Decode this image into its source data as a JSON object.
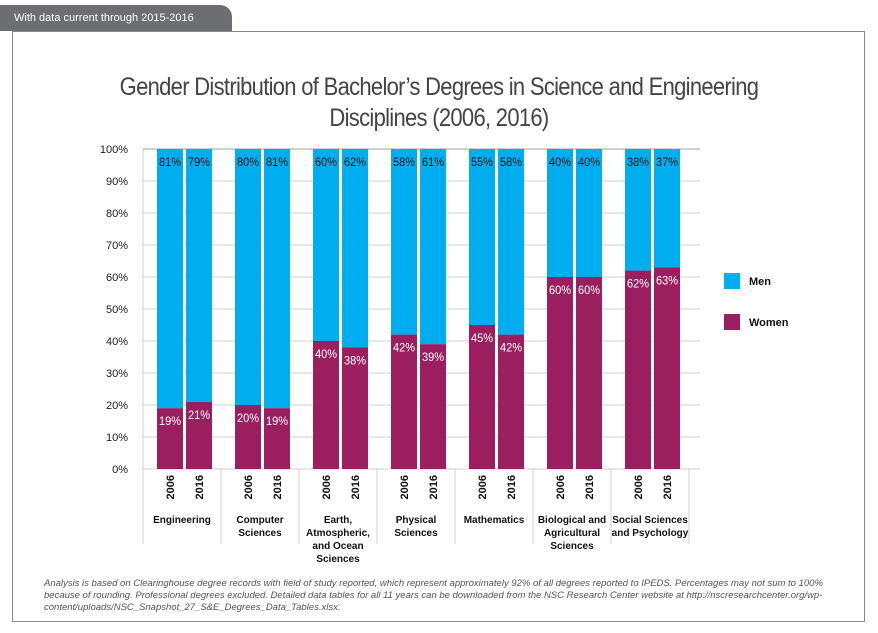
{
  "banner": "With data current through 2015-2016",
  "footnote": "Analysis is based on Clearinghouse degree records with field of study reported, which represent approximately 92% of all degrees reported to IPEDS. Percentages may not sum to 100% because of rounding. Professional degrees excluded. Detailed data tables for all 11 years can be downloaded from the NSC Research Center website at http://nscresearchcenter.org/wp-content/uploads/NSC_Snapshot_27_S&E_Degrees_Data_Tables.xlsx.",
  "chart_data": {
    "type": "bar",
    "stacked": true,
    "title": "Gender Distribution of Bachelor’s Degrees in Science and Engineering Disciplines (2006, 2016)",
    "ylim": [
      0,
      100
    ],
    "yticks": [
      "0%",
      "10%",
      "20%",
      "30%",
      "40%",
      "50%",
      "60%",
      "70%",
      "80%",
      "90%",
      "100%"
    ],
    "legend_position": "right",
    "groups": [
      {
        "label": [
          "Engineering"
        ],
        "years": [
          "2006",
          "2016"
        ],
        "women": [
          19,
          21
        ],
        "men": [
          81,
          79
        ]
      },
      {
        "label": [
          "Computer",
          "Sciences"
        ],
        "years": [
          "2006",
          "2016"
        ],
        "women": [
          20,
          19
        ],
        "men": [
          80,
          81
        ]
      },
      {
        "label": [
          "Earth,",
          "Atmospheric,",
          "and Ocean",
          "Sciences"
        ],
        "years": [
          "2006",
          "2016"
        ],
        "women": [
          40,
          38
        ],
        "men": [
          60,
          62
        ]
      },
      {
        "label": [
          "Physical",
          "Sciences"
        ],
        "years": [
          "2006",
          "2016"
        ],
        "women": [
          42,
          39
        ],
        "men": [
          58,
          61
        ]
      },
      {
        "label": [
          "Mathematics"
        ],
        "years": [
          "2006",
          "2016"
        ],
        "women": [
          45,
          42
        ],
        "men": [
          55,
          58
        ]
      },
      {
        "label": [
          "Biological and",
          "Agricultural",
          "Sciences"
        ],
        "years": [
          "2006",
          "2016"
        ],
        "women": [
          60,
          60
        ],
        "men": [
          40,
          40
        ]
      },
      {
        "label": [
          "Social Sciences",
          "and Psychology"
        ],
        "years": [
          "2006",
          "2016"
        ],
        "women": [
          62,
          63
        ],
        "men": [
          38,
          37
        ]
      }
    ],
    "series": [
      {
        "name": "Men",
        "color": "#00aeef"
      },
      {
        "name": "Women",
        "color": "#9b1f5f"
      }
    ]
  }
}
